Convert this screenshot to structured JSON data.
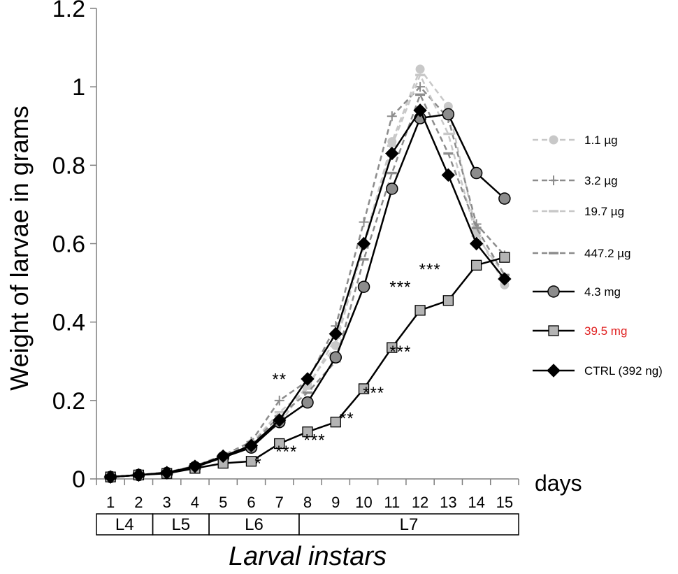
{
  "chart_data": {
    "type": "line",
    "title": "",
    "ylabel": "Weight of larvae in grams",
    "xlabel": "Larval instars",
    "x_unit_label": "days",
    "x": [
      1,
      2,
      3,
      4,
      5,
      6,
      7,
      8,
      9,
      10,
      11,
      12,
      13,
      14,
      15
    ],
    "ylim": [
      0,
      1.2
    ],
    "yticks": [
      "0",
      "0.2",
      "0.4",
      "0.6",
      "0.8",
      "1",
      "1.2"
    ],
    "legend_position": "right",
    "grid": false,
    "series": [
      {
        "name": "1.1 µg",
        "style": "dashed",
        "marker": "circle",
        "color": "#c8c8c8",
        "values": [
          0.005,
          0.01,
          0.017,
          0.033,
          0.06,
          0.09,
          0.14,
          0.24,
          0.34,
          0.6,
          0.86,
          1.045,
          0.95,
          0.63,
          0.495
        ]
      },
      {
        "name": "3.2 µg",
        "style": "dashed",
        "marker": "plus",
        "color": "#8c8c8c",
        "values": [
          0.005,
          0.01,
          0.017,
          0.033,
          0.06,
          0.095,
          0.2,
          0.25,
          0.39,
          0.655,
          0.925,
          1.0,
          0.92,
          0.65,
          0.57
        ]
      },
      {
        "name": "19.7 µg",
        "style": "dashed",
        "marker": "dash",
        "color": "#c8c8c8",
        "values": [
          0.005,
          0.01,
          0.016,
          0.032,
          0.058,
          0.09,
          0.17,
          0.23,
          0.36,
          0.59,
          0.85,
          1.03,
          0.88,
          0.62,
          0.52
        ]
      },
      {
        "name": "447.2 µg",
        "style": "dashed",
        "marker": "dash",
        "color": "#8c8c8c",
        "values": [
          0.005,
          0.01,
          0.016,
          0.032,
          0.057,
          0.088,
          0.16,
          0.22,
          0.3,
          0.56,
          0.78,
          0.98,
          0.83,
          0.64,
          0.52
        ]
      },
      {
        "name": "4.3 mg",
        "style": "solid",
        "marker": "circle",
        "color": "#000000",
        "marker_fill": "#8c8c8c",
        "values": [
          0.005,
          0.01,
          0.015,
          0.03,
          0.055,
          0.08,
          0.145,
          0.195,
          0.31,
          0.49,
          0.74,
          0.92,
          0.93,
          0.78,
          0.715
        ]
      },
      {
        "name": "39.5 mg",
        "name_color": "#e02020",
        "style": "solid",
        "marker": "square",
        "color": "#000000",
        "marker_fill": "#b4b4b4",
        "values": [
          0.005,
          0.01,
          0.014,
          0.027,
          0.04,
          0.045,
          0.09,
          0.12,
          0.145,
          0.23,
          0.335,
          0.43,
          0.455,
          0.545,
          0.565
        ]
      },
      {
        "name": "CTRL (392 ng)",
        "style": "solid",
        "marker": "diamond",
        "color": "#000000",
        "marker_fill": "#000000",
        "values": [
          0.005,
          0.01,
          0.016,
          0.032,
          0.058,
          0.085,
          0.15,
          0.255,
          0.37,
          0.6,
          0.83,
          0.94,
          0.775,
          0.6,
          0.51
        ]
      }
    ],
    "instars": [
      {
        "label": "L4",
        "start": 0.5,
        "end": 2.5
      },
      {
        "label": "L5",
        "start": 2.5,
        "end": 4.5
      },
      {
        "label": "L6",
        "start": 4.5,
        "end": 7.7
      },
      {
        "label": "L7",
        "start": 7.7,
        "end": 15.5
      }
    ],
    "annotations": [
      {
        "text": "**",
        "x": 7,
        "y": 0.24
      },
      {
        "text": "*",
        "x": 6.25,
        "y": 0.025
      },
      {
        "text": "***",
        "x": 7.25,
        "y": 0.055
      },
      {
        "text": "***",
        "x": 8.25,
        "y": 0.085
      },
      {
        "text": "**",
        "x": 9.4,
        "y": 0.14
      },
      {
        "text": "***",
        "x": 10.35,
        "y": 0.205
      },
      {
        "text": "***",
        "x": 11.3,
        "y": 0.31
      },
      {
        "text": "***",
        "x": 11.3,
        "y": 0.475
      },
      {
        "text": "***",
        "x": 12.35,
        "y": 0.52
      }
    ]
  }
}
